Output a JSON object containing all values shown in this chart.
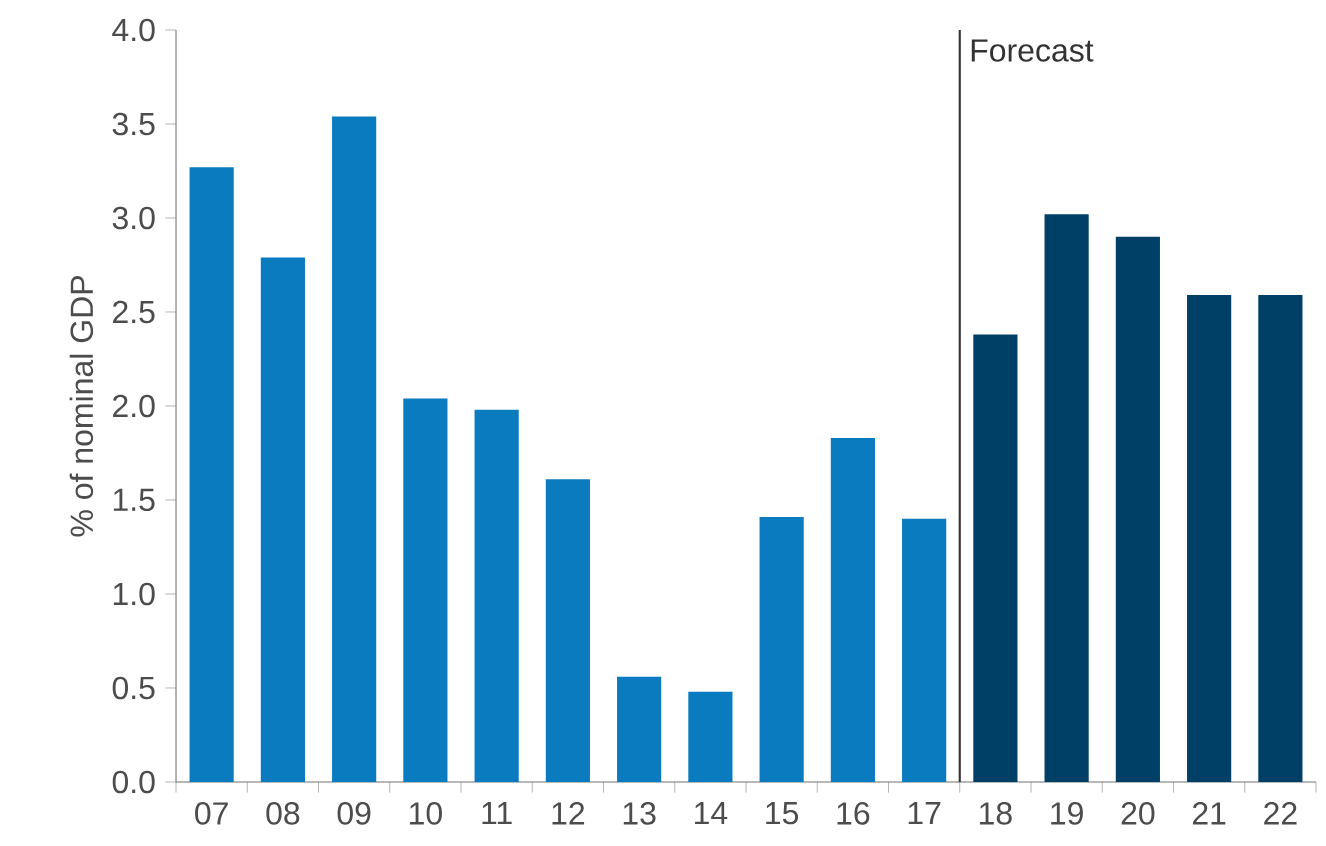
{
  "chart_data": {
    "type": "bar",
    "ylabel": "% of nominal GDP",
    "categories": [
      "07",
      "08",
      "09",
      "10",
      "11",
      "12",
      "13",
      "14",
      "15",
      "16",
      "17",
      "18",
      "19",
      "20",
      "21",
      "22"
    ],
    "values": [
      3.27,
      2.79,
      3.54,
      2.04,
      1.98,
      1.61,
      0.56,
      0.48,
      1.41,
      1.83,
      1.4,
      2.38,
      3.02,
      2.9,
      2.59,
      2.59
    ],
    "colors": [
      "#0a7bbf",
      "#0a7bbf",
      "#0a7bbf",
      "#0a7bbf",
      "#0a7bbf",
      "#0a7bbf",
      "#0a7bbf",
      "#0a7bbf",
      "#0a7bbf",
      "#0a7bbf",
      "#0a7bbf",
      "#003f66",
      "#003f66",
      "#003f66",
      "#003f66",
      "#003f66"
    ],
    "ylim": [
      0,
      4
    ],
    "yticks": [
      {
        "value": 0,
        "label": "0.0"
      },
      {
        "value": 0.5,
        "label": "0.5"
      },
      {
        "value": 1,
        "label": "1.0"
      },
      {
        "value": 1.5,
        "label": "1.5"
      },
      {
        "value": 2,
        "label": "2.0"
      },
      {
        "value": 2.5,
        "label": "2.5"
      },
      {
        "value": 3,
        "label": "3.0"
      },
      {
        "value": 3.5,
        "label": "3.5"
      },
      {
        "value": 4,
        "label": "4.0"
      }
    ],
    "annotations": [
      "Forecast"
    ]
  }
}
